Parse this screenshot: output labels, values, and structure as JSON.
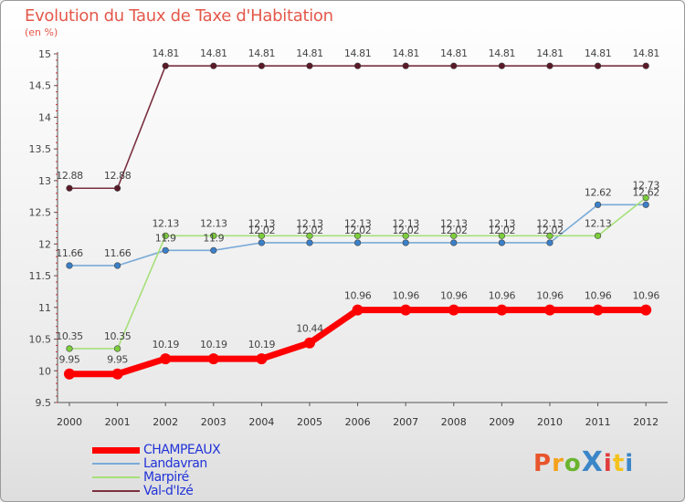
{
  "title": "Evolution du Taux de Taxe d'Habitation",
  "subtitle": "(en %)",
  "logo": {
    "text": "ProXiti",
    "colors": [
      "#e8542c",
      "#f4a21c",
      "#6ab42e",
      "#3b86c8",
      "#e23b3b",
      "#f4c21c",
      "#3b86c8"
    ]
  },
  "chart_data": {
    "type": "line",
    "title": "Evolution du Taux de Taxe d'Habitation",
    "ylabel": "(en %)",
    "xlabel": "",
    "x": [
      "2000",
      "2001",
      "2002",
      "2003",
      "2004",
      "2005",
      "2006",
      "2007",
      "2008",
      "2009",
      "2010",
      "2011",
      "2012"
    ],
    "ylim": [
      9.5,
      15
    ],
    "yticks": [
      "9.5",
      "10",
      "10.5",
      "11",
      "11.5",
      "12",
      "12.5",
      "13",
      "13.5",
      "14",
      "14.5",
      "15"
    ],
    "grid": false,
    "legend_position": "bottom-left",
    "series": [
      {
        "name": "CHAMPEAUX",
        "color": "#ff0000",
        "values": [
          9.95,
          9.95,
          10.19,
          10.19,
          10.19,
          10.44,
          10.96,
          10.96,
          10.96,
          10.96,
          10.96,
          10.96,
          10.96
        ],
        "labels": [
          "9.95",
          "9.95",
          "10.19",
          "10.19",
          "10.19",
          "10.44",
          "10.96",
          "10.96",
          "10.96",
          "10.96",
          "10.96",
          "10.96",
          "10.96"
        ]
      },
      {
        "name": "Landavran",
        "color": "#7aaad8",
        "values": [
          11.66,
          11.66,
          11.9,
          11.9,
          12.02,
          12.02,
          12.02,
          12.02,
          12.02,
          12.02,
          12.02,
          12.62,
          12.62
        ],
        "labels": [
          "11.66",
          "11.66",
          "11.9",
          "11.9",
          "12.02",
          "12.02",
          "12.02",
          "12.02",
          "12.02",
          "12.02",
          "12.02",
          "12.62",
          "12.62"
        ]
      },
      {
        "name": "Marpiré",
        "color": "#a6e07a",
        "values": [
          10.35,
          10.35,
          12.13,
          12.13,
          12.13,
          12.13,
          12.13,
          12.13,
          12.13,
          12.13,
          12.13,
          12.13,
          12.73
        ],
        "labels": [
          "10.35",
          "10.35",
          "12.13",
          "12.13",
          "12.13",
          "12.13",
          "12.13",
          "12.13",
          "12.13",
          "12.13",
          "12.13",
          "12.13",
          "12.73"
        ]
      },
      {
        "name": "Val-d'Izé",
        "color": "#7a3040",
        "values": [
          12.88,
          12.88,
          14.81,
          14.81,
          14.81,
          14.81,
          14.81,
          14.81,
          14.81,
          14.81,
          14.81,
          14.81,
          14.81
        ],
        "labels": [
          "12.88",
          "12.88",
          "14.81",
          "14.81",
          "14.81",
          "14.81",
          "14.81",
          "14.81",
          "14.81",
          "14.81",
          "14.81",
          "14.81",
          "14.81"
        ]
      }
    ]
  }
}
